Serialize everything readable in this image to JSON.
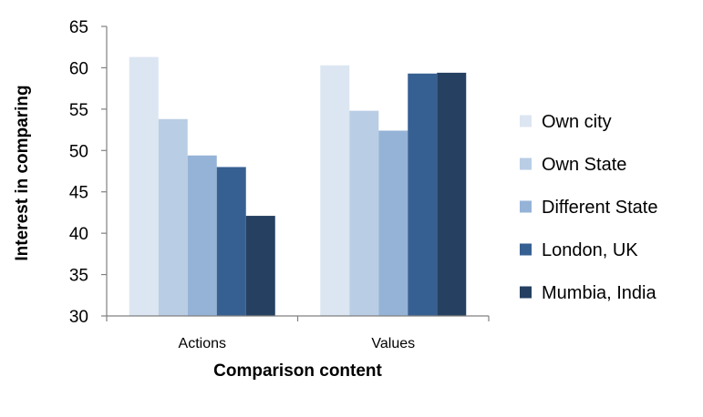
{
  "chart_data": {
    "type": "bar",
    "title": "",
    "xlabel": "Comparison content",
    "ylabel": "Interest in comparing",
    "categories": [
      "Actions",
      "Values"
    ],
    "ylim": [
      30,
      65
    ],
    "yticks": [
      "30",
      "35",
      "40",
      "45",
      "50",
      "55",
      "60",
      "65"
    ],
    "grid": false,
    "legend_position": "right",
    "series": [
      {
        "name": "Own city",
        "color": "#dce6f2",
        "values": [
          61.3,
          60.3
        ]
      },
      {
        "name": "Own State",
        "color": "#b9cde5",
        "values": [
          53.8,
          54.8
        ]
      },
      {
        "name": "Different State",
        "color": "#95b3d7",
        "values": [
          49.4,
          52.4
        ]
      },
      {
        "name": "London, UK",
        "color": "#376092",
        "values": [
          48.0,
          59.3
        ]
      },
      {
        "name": "Mumbia, India",
        "color": "#254061",
        "values": [
          42.1,
          59.4
        ]
      }
    ]
  }
}
